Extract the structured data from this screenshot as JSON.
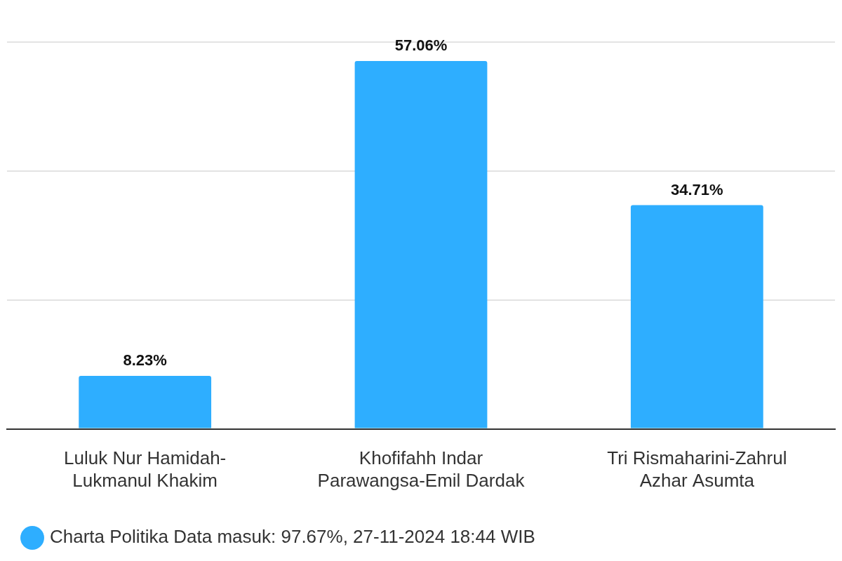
{
  "chart_data": {
    "type": "bar",
    "categories": [
      "Luluk Nur Hamidah-Lukmanul Khakim",
      "Khofifahh Indar Parawangsa-Emil Dardak",
      "Tri Rismaharini-Zahrul Azhar Asumta"
    ],
    "series": [
      {
        "name": "Charta Politika Data masuk: 97.67%, 27-11-2024 18:44 WIB",
        "color": "#2eaeff",
        "values": [
          8.23,
          57.06,
          34.71
        ],
        "value_labels": [
          "8.23%",
          "57.06%",
          "34.71%"
        ]
      }
    ],
    "ylim": [
      0,
      60
    ],
    "yticks": [
      0,
      20,
      40,
      60
    ],
    "grid": true,
    "legend": "bottom",
    "data_labels": true,
    "tick_labels": "x"
  }
}
